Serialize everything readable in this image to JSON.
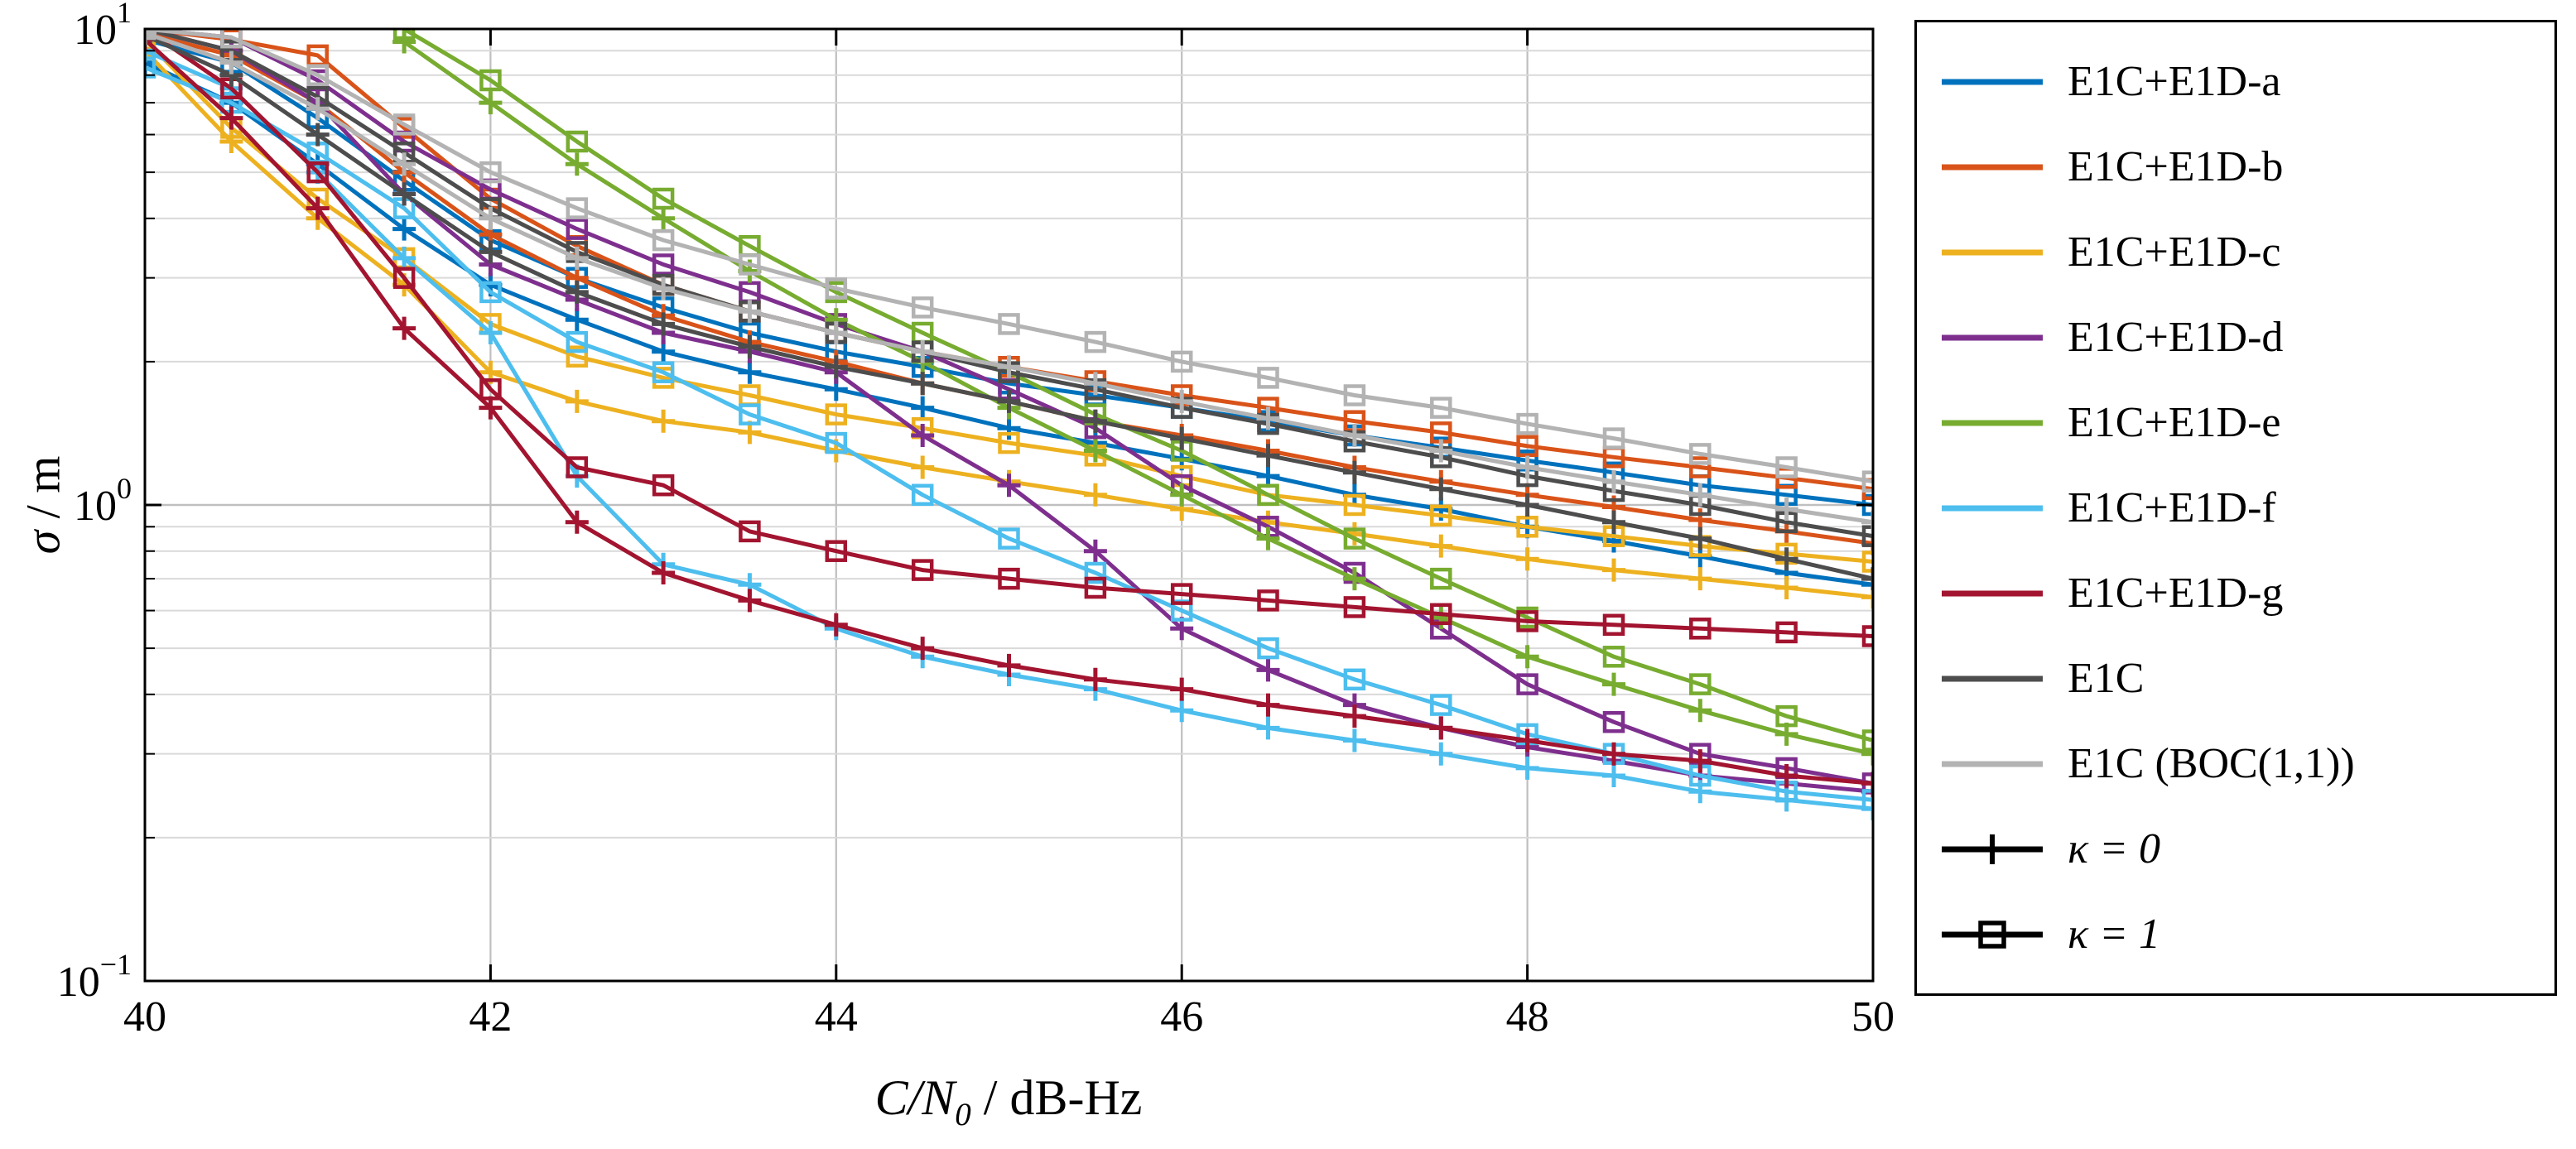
{
  "labels": {
    "ylabel_sym": "σ",
    "ylabel_unit": " / m",
    "xlabel_main": "C/N",
    "xlabel_sub": "0",
    "xlabel_unit": " / dB-Hz"
  },
  "chart_data": {
    "type": "line",
    "title": "",
    "xlabel": "C/N₀ / dB-Hz",
    "ylabel": "σ / m",
    "xlim": [
      40,
      50
    ],
    "ylim": [
      0.1,
      10
    ],
    "yscale": "log",
    "grid": {
      "x_major": [
        42,
        44,
        46,
        48
      ],
      "y_minor": "log-decade-subdivisions"
    },
    "x_ticks": [
      40,
      42,
      44,
      46,
      48,
      50
    ],
    "y_ticks": [
      {
        "value": 10,
        "base": "10",
        "exp": "1"
      },
      {
        "value": 1,
        "base": "10",
        "exp": "0"
      },
      {
        "value": 0.1,
        "base": "10",
        "exp": "−1"
      }
    ],
    "style": {
      "grid_major_color": "#bfbfbf",
      "grid_minor_color": "#d9d9d9",
      "axis_color": "#000000",
      "background": "#ffffff"
    },
    "x": [
      40,
      40.5,
      41,
      41.5,
      42,
      42.5,
      43,
      43.5,
      44,
      44.5,
      45,
      45.5,
      46,
      46.5,
      47,
      47.5,
      48,
      48.5,
      49,
      49.5,
      50
    ],
    "series": [
      {
        "key": "a-k0",
        "name": "E1C+E1D-a (κ=0)",
        "color": "#0072bd",
        "marker": "plus",
        "kappa": 0,
        "values": [
          8.5,
          7.0,
          5.2,
          3.8,
          2.9,
          2.45,
          2.1,
          1.9,
          1.75,
          1.6,
          1.45,
          1.35,
          1.25,
          1.15,
          1.05,
          0.98,
          0.9,
          0.84,
          0.78,
          0.72,
          0.68
        ]
      },
      {
        "key": "a-k1",
        "name": "E1C+E1D-a (κ=1)",
        "color": "#0072bd",
        "marker": "square",
        "kappa": 1,
        "values": [
          9.5,
          8.5,
          6.5,
          4.8,
          3.6,
          3.0,
          2.6,
          2.3,
          2.1,
          1.95,
          1.8,
          1.7,
          1.6,
          1.5,
          1.4,
          1.32,
          1.24,
          1.17,
          1.1,
          1.05,
          1.0
        ]
      },
      {
        "key": "b-k0",
        "name": "E1C+E1D-b (κ=0)",
        "color": "#d95319",
        "marker": "plus",
        "kappa": 0,
        "values": [
          9.8,
          8.8,
          7.0,
          5.0,
          3.7,
          3.0,
          2.5,
          2.2,
          2.0,
          1.8,
          1.65,
          1.5,
          1.4,
          1.3,
          1.2,
          1.12,
          1.05,
          0.99,
          0.93,
          0.88,
          0.83
        ]
      },
      {
        "key": "b-k1",
        "name": "E1C+E1D-b (κ=1)",
        "color": "#d95319",
        "marker": "square",
        "kappa": 1,
        "values": [
          10,
          9.5,
          8.8,
          6.2,
          4.4,
          3.5,
          2.9,
          2.55,
          2.3,
          2.1,
          1.95,
          1.82,
          1.7,
          1.6,
          1.5,
          1.42,
          1.33,
          1.26,
          1.2,
          1.14,
          1.08
        ]
      },
      {
        "key": "c-k0",
        "name": "E1C+E1D-c (κ=0)",
        "color": "#edb120",
        "marker": "plus",
        "kappa": 0,
        "values": [
          9.0,
          5.8,
          4.0,
          2.9,
          1.9,
          1.65,
          1.5,
          1.42,
          1.3,
          1.2,
          1.12,
          1.05,
          0.98,
          0.92,
          0.87,
          0.82,
          0.77,
          0.73,
          0.7,
          0.67,
          0.64
        ]
      },
      {
        "key": "c-k1",
        "name": "E1C+E1D-c (κ=1)",
        "color": "#edb120",
        "marker": "square",
        "kappa": 1,
        "values": [
          9.5,
          6.2,
          4.4,
          3.3,
          2.4,
          2.05,
          1.85,
          1.7,
          1.55,
          1.45,
          1.35,
          1.27,
          1.15,
          1.05,
          1.0,
          0.95,
          0.9,
          0.86,
          0.82,
          0.79,
          0.76
        ]
      },
      {
        "key": "d-k0",
        "name": "E1C+E1D-d (κ=0)",
        "color": "#7e2f8e",
        "marker": "plus",
        "kappa": 0,
        "values": [
          10,
          9.0,
          7.0,
          4.5,
          3.2,
          2.7,
          2.3,
          2.1,
          1.9,
          1.4,
          1.1,
          0.8,
          0.55,
          0.45,
          0.38,
          0.34,
          0.31,
          0.29,
          0.27,
          0.26,
          0.25
        ]
      },
      {
        "key": "d-k1",
        "name": "E1C+E1D-d (κ=1)",
        "color": "#7e2f8e",
        "marker": "square",
        "kappa": 1,
        "values": [
          10,
          9.6,
          7.8,
          5.8,
          4.6,
          3.8,
          3.2,
          2.8,
          2.4,
          2.1,
          1.75,
          1.45,
          1.1,
          0.9,
          0.72,
          0.55,
          0.42,
          0.35,
          0.3,
          0.28,
          0.26
        ]
      },
      {
        "key": "e-k0",
        "name": "E1C+E1D-e (κ=0)",
        "color": "#77ac30",
        "marker": "plus",
        "kappa": 0,
        "values": [
          null,
          null,
          null,
          9.4,
          7.0,
          5.2,
          4.0,
          3.1,
          2.45,
          2.0,
          1.6,
          1.3,
          1.05,
          0.85,
          0.7,
          0.58,
          0.48,
          0.42,
          0.37,
          0.33,
          0.3
        ]
      },
      {
        "key": "e-k1",
        "name": "E1C+E1D-e (κ=1)",
        "color": "#77ac30",
        "marker": "square",
        "kappa": 1,
        "values": [
          null,
          null,
          null,
          10,
          7.8,
          5.8,
          4.4,
          3.5,
          2.8,
          2.3,
          1.9,
          1.55,
          1.3,
          1.05,
          0.85,
          0.7,
          0.58,
          0.48,
          0.42,
          0.36,
          0.32
        ]
      },
      {
        "key": "f-k0",
        "name": "E1C+E1D-f (κ=0)",
        "color": "#4dbeee",
        "marker": "plus",
        "kappa": 0,
        "values": [
          9.0,
          7.5,
          5.0,
          3.3,
          2.3,
          1.15,
          0.75,
          0.68,
          0.55,
          0.48,
          0.44,
          0.41,
          0.37,
          0.34,
          0.32,
          0.3,
          0.28,
          0.27,
          0.25,
          0.24,
          0.23
        ]
      },
      {
        "key": "f-k1",
        "name": "E1C+E1D-f (κ=1)",
        "color": "#4dbeee",
        "marker": "square",
        "kappa": 1,
        "values": [
          8.3,
          7.0,
          5.5,
          4.2,
          2.8,
          2.2,
          1.9,
          1.55,
          1.35,
          1.05,
          0.85,
          0.72,
          0.6,
          0.5,
          0.43,
          0.38,
          0.33,
          0.3,
          0.27,
          0.25,
          0.24
        ]
      },
      {
        "key": "g-k0",
        "name": "E1C+E1D-g (κ=0)",
        "color": "#a2142f",
        "marker": "plus",
        "kappa": 0,
        "values": [
          9.5,
          6.5,
          4.2,
          2.35,
          1.6,
          0.92,
          0.72,
          0.63,
          0.56,
          0.5,
          0.46,
          0.43,
          0.41,
          0.38,
          0.36,
          0.34,
          0.32,
          0.3,
          0.29,
          0.27,
          0.26
        ]
      },
      {
        "key": "g-k1",
        "name": "E1C+E1D-g (κ=1)",
        "color": "#a2142f",
        "marker": "square",
        "kappa": 1,
        "values": [
          10,
          7.5,
          5.0,
          3.0,
          1.75,
          1.2,
          1.1,
          0.88,
          0.8,
          0.73,
          0.7,
          0.67,
          0.65,
          0.63,
          0.61,
          0.59,
          0.57,
          0.56,
          0.55,
          0.54,
          0.53
        ]
      },
      {
        "key": "e1c-k0",
        "name": "E1C (κ=0)",
        "color": "#4d4d4d",
        "marker": "plus",
        "kappa": 0,
        "values": [
          9.7,
          8.0,
          6.0,
          4.5,
          3.4,
          2.8,
          2.4,
          2.15,
          1.95,
          1.8,
          1.65,
          1.5,
          1.38,
          1.27,
          1.17,
          1.08,
          1.0,
          0.92,
          0.85,
          0.77,
          0.7
        ]
      },
      {
        "key": "e1c-k1",
        "name": "E1C (κ=1)",
        "color": "#4d4d4d",
        "marker": "square",
        "kappa": 1,
        "values": [
          10,
          9.0,
          7.2,
          5.5,
          4.2,
          3.4,
          2.9,
          2.55,
          2.3,
          2.1,
          1.9,
          1.75,
          1.6,
          1.48,
          1.36,
          1.26,
          1.15,
          1.07,
          1.0,
          0.92,
          0.86
        ]
      },
      {
        "key": "boc-k0",
        "name": "E1C (BOC(1,1)) (κ=0)",
        "color": "#b3b3b3",
        "marker": "plus",
        "kappa": 0,
        "values": [
          9.8,
          8.5,
          6.8,
          5.2,
          4.0,
          3.3,
          2.85,
          2.55,
          2.3,
          2.1,
          1.95,
          1.8,
          1.65,
          1.52,
          1.4,
          1.3,
          1.2,
          1.12,
          1.05,
          0.98,
          0.92
        ]
      },
      {
        "key": "boc-k1",
        "name": "E1C (BOC(1,1)) (κ=1)",
        "color": "#b3b3b3",
        "marker": "square",
        "kappa": 1,
        "values": [
          10,
          9.6,
          8.0,
          6.3,
          5.0,
          4.2,
          3.6,
          3.2,
          2.85,
          2.6,
          2.4,
          2.2,
          2.0,
          1.85,
          1.7,
          1.6,
          1.48,
          1.38,
          1.28,
          1.2,
          1.12
        ]
      }
    ],
    "legend": {
      "position": "right",
      "entries": [
        {
          "label": "E1C+E1D-a",
          "color": "#0072bd",
          "marker": "none",
          "italic": false
        },
        {
          "label": "E1C+E1D-b",
          "color": "#d95319",
          "marker": "none",
          "italic": false
        },
        {
          "label": "E1C+E1D-c",
          "color": "#edb120",
          "marker": "none",
          "italic": false
        },
        {
          "label": "E1C+E1D-d",
          "color": "#7e2f8e",
          "marker": "none",
          "italic": false
        },
        {
          "label": "E1C+E1D-e",
          "color": "#77ac30",
          "marker": "none",
          "italic": false
        },
        {
          "label": "E1C+E1D-f",
          "color": "#4dbeee",
          "marker": "none",
          "italic": false
        },
        {
          "label": "E1C+E1D-g",
          "color": "#a2142f",
          "marker": "none",
          "italic": false
        },
        {
          "label": "E1C",
          "color": "#4d4d4d",
          "marker": "none",
          "italic": false
        },
        {
          "label": "E1C (BOC(1,1))",
          "color": "#b3b3b3",
          "marker": "none",
          "italic": false
        },
        {
          "label": "κ = 0",
          "color": "#000000",
          "marker": "plus",
          "italic": true
        },
        {
          "label": "κ = 1",
          "color": "#000000",
          "marker": "square",
          "italic": true
        }
      ]
    }
  }
}
